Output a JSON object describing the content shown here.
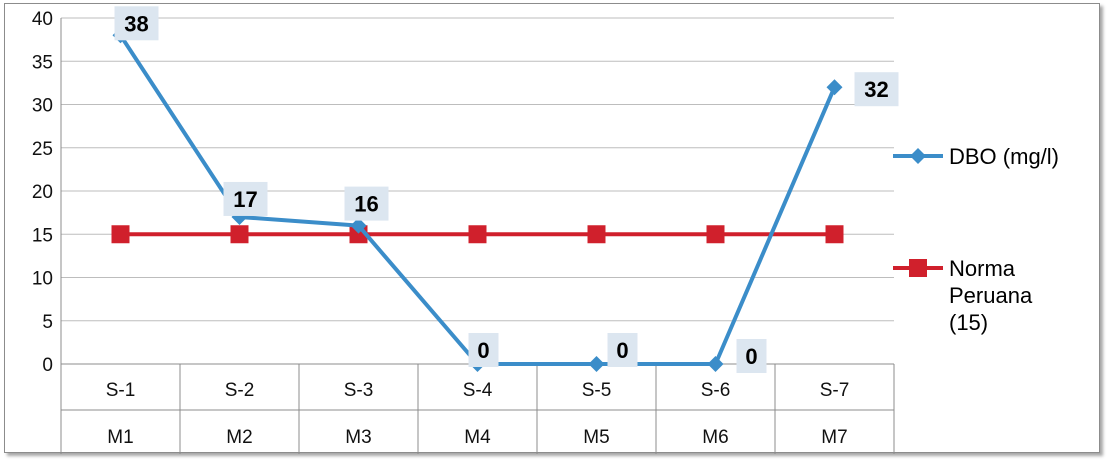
{
  "chart_data": {
    "type": "line",
    "categories": [
      "S-1",
      "S-2",
      "S-3",
      "S-4",
      "S-5",
      "S-6",
      "S-7"
    ],
    "categories_secondary": [
      "M1",
      "M2",
      "M3",
      "M4",
      "M5",
      "M6",
      "M7"
    ],
    "series": [
      {
        "name": "DBO (mg/l)",
        "values": [
          38,
          17,
          16,
          0,
          0,
          0,
          32
        ],
        "color": "#3b8dc9",
        "marker": "diamond",
        "show_labels": true
      },
      {
        "name": "Norma Peruana (15)",
        "name_lines": [
          "Norma",
          "Peruana",
          "(15)"
        ],
        "values": [
          15,
          15,
          15,
          15,
          15,
          15,
          15
        ],
        "color": "#d0202c",
        "marker": "square",
        "show_labels": false
      }
    ],
    "ylim": [
      0,
      40
    ],
    "yticks": [
      0,
      5,
      10,
      15,
      20,
      25,
      30,
      35,
      40
    ],
    "grid": true,
    "legend_position": "right",
    "title": "",
    "xlabel": "",
    "ylabel": ""
  }
}
